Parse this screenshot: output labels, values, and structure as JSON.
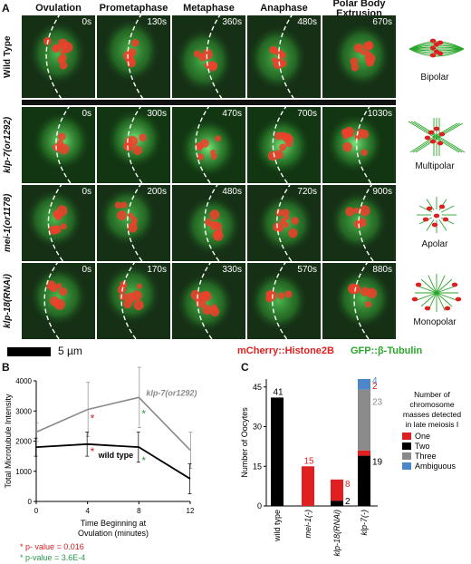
{
  "panelA": {
    "letter": "A",
    "columns": [
      "Ovulation",
      "Prometaphase",
      "Metaphase",
      "Anaphase",
      "Polar Body Extrusion"
    ],
    "rows": [
      {
        "label": "Wild Type",
        "italic": false,
        "times": [
          "0s",
          "130s",
          "360s",
          "480s",
          "670s"
        ],
        "spindle": "Bipolar",
        "bright": false
      },
      {
        "label": "klp-7(or1292)",
        "italic": true,
        "times": [
          "0s",
          "300s",
          "470s",
          "700s",
          "1030s"
        ],
        "spindle": "Multipolar",
        "bright": true
      },
      {
        "label": "mei-1(or1178)",
        "italic": true,
        "times": [
          "0s",
          "200s",
          "480s",
          "720s",
          "900s"
        ],
        "spindle": "Apolar",
        "bright": false
      },
      {
        "label": "klp-18(RNAi)",
        "italic": true,
        "times": [
          "0s",
          "170s",
          "330s",
          "570s",
          "880s"
        ],
        "spindle": "Monopolar",
        "bright": false
      }
    ],
    "scalebar": "5 µm",
    "legend_red": "mCherry::Histone2B",
    "legend_green": "GFP::β-Tubulin"
  },
  "panelB": {
    "letter": "B",
    "chart_data": {
      "type": "line",
      "ylabel": "Total Microtubule Intensity",
      "xlabel": "Time Beginning at Ovulation (minutes)",
      "x": [
        0,
        4,
        8,
        12
      ],
      "xticks": [
        "0",
        "4",
        "8",
        "12"
      ],
      "yticks": [
        "0",
        "1000",
        "2000",
        "3000",
        "4000"
      ],
      "ylim": [
        0,
        4000
      ],
      "series": [
        {
          "name": "klp-7(or1292)",
          "color": "#8a8a8a",
          "values": [
            2300,
            3050,
            3450,
            1700
          ],
          "err": [
            300,
            900,
            1000,
            600
          ]
        },
        {
          "name": "wild type",
          "color": "#000000",
          "values": [
            1800,
            1900,
            1800,
            750
          ],
          "err": [
            300,
            400,
            500,
            500
          ]
        }
      ],
      "annotations": [
        {
          "text": "*",
          "color": "#d02020",
          "x": 4,
          "y": 2750
        },
        {
          "text": "*",
          "color": "#d02020",
          "x": 4,
          "y": 1650
        },
        {
          "text": "*",
          "color": "#2a9a50",
          "x": 8,
          "y": 2900
        },
        {
          "text": "*",
          "color": "#2a9a50",
          "x": 8,
          "y": 1350
        }
      ],
      "pvalues": [
        {
          "text": "* p- value = 0.016",
          "color": "#d02020"
        },
        {
          "text": "* p-value =  3.6E-4",
          "color": "#2a9a50"
        }
      ]
    }
  },
  "panelC": {
    "letter": "C",
    "chart_data": {
      "type": "bar",
      "ylabel": "Number of Oocytes",
      "categories": [
        "wild type",
        "mei-1(-)",
        "klp-18(RNAi)",
        "klp-7(-)"
      ],
      "category_italic": [
        false,
        true,
        true,
        true
      ],
      "ylim": [
        0,
        48
      ],
      "yticks": [
        "0",
        "15",
        "30",
        "45"
      ],
      "series": [
        {
          "name": "Two",
          "color": "#000000",
          "values": [
            41,
            0,
            2,
            19
          ]
        },
        {
          "name": "One",
          "color": "#e02020",
          "values": [
            0,
            15,
            8,
            2
          ]
        },
        {
          "name": "Three",
          "color": "#8a8a8a",
          "values": [
            0,
            0,
            0,
            23
          ]
        },
        {
          "name": "Ambiguous",
          "color": "#4a86c8",
          "values": [
            0,
            0,
            0,
            4
          ]
        }
      ],
      "labels": [
        {
          "text": "41",
          "color": "#000000"
        },
        {
          "text": "15",
          "color": "#e02020"
        },
        {
          "text": "8",
          "color": "#e02020"
        },
        {
          "text": "2",
          "color": "#000000"
        },
        {
          "text": "4",
          "color": "#4a86c8"
        },
        {
          "text": "2",
          "color": "#e02020"
        },
        {
          "text": "23",
          "color": "#8a8a8a"
        },
        {
          "text": "19",
          "color": "#000000"
        }
      ],
      "legend_title": "Number of chromosome masses detected in late meiosis I",
      "legend": [
        {
          "name": "One",
          "color": "#e02020"
        },
        {
          "name": "Two",
          "color": "#000000"
        },
        {
          "name": "Three",
          "color": "#8a8a8a"
        },
        {
          "name": "Ambiguous",
          "color": "#4a86c8"
        }
      ]
    }
  }
}
